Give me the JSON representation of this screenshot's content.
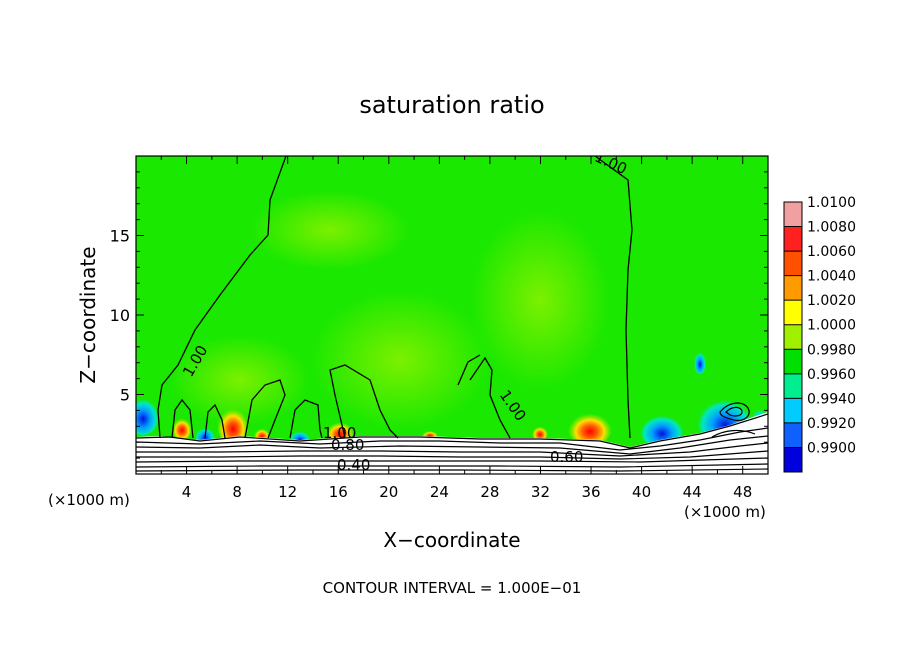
{
  "chart_data": {
    "type": "heatmap",
    "title": "saturation ratio",
    "xlabel": "X−coordinate",
    "ylabel": "Z−coordinate",
    "x_unit_left": "(×1000 m)",
    "x_unit_right": "(×1000 m)",
    "xlim": [
      0,
      50
    ],
    "ylim": [
      0,
      20
    ],
    "x_ticks": [
      4,
      8,
      12,
      16,
      20,
      24,
      28,
      32,
      36,
      40,
      44,
      48
    ],
    "y_ticks": [
      5,
      10,
      15
    ],
    "grid": false,
    "colorbar": {
      "placement": "right",
      "levels": [
        {
          "label": "1.0100",
          "color": "#f0a0a0"
        },
        {
          "label": "1.0080",
          "color": "#ff2020"
        },
        {
          "label": "1.0060",
          "color": "#ff5000"
        },
        {
          "label": "1.0040",
          "color": "#ff9a00"
        },
        {
          "label": "1.0020",
          "color": "#ffff00"
        },
        {
          "label": "1.0000",
          "color": "#a0f000"
        },
        {
          "label": "0.9980",
          "color": "#00e000"
        },
        {
          "label": "0.9960",
          "color": "#00ee90"
        },
        {
          "label": "0.9940",
          "color": "#00ccff"
        },
        {
          "label": "0.9920",
          "color": "#1060ff"
        },
        {
          "label": "0.9900",
          "color": "#0000dd"
        },
        {
          "label": "",
          "color": "#7000a0"
        }
      ]
    },
    "contour_labels": [
      {
        "text": "1.00",
        "x": 38.5,
        "y": 19.0
      },
      {
        "text": "1.00",
        "x": 4.6,
        "y": 7.8
      },
      {
        "text": "1.00",
        "x": 29.4,
        "y": 4.2
      },
      {
        "text": "1.00",
        "x": 16.5,
        "y": 2.3
      },
      {
        "text": "0.80",
        "x": 17.0,
        "y": 1.7
      },
      {
        "text": "0.40",
        "x": 17.5,
        "y": 0.6
      },
      {
        "text": "0.60",
        "x": 34.3,
        "y": 1.0
      }
    ],
    "contour_interval": "CONTOUR INTERVAL = 1.000E−01"
  }
}
